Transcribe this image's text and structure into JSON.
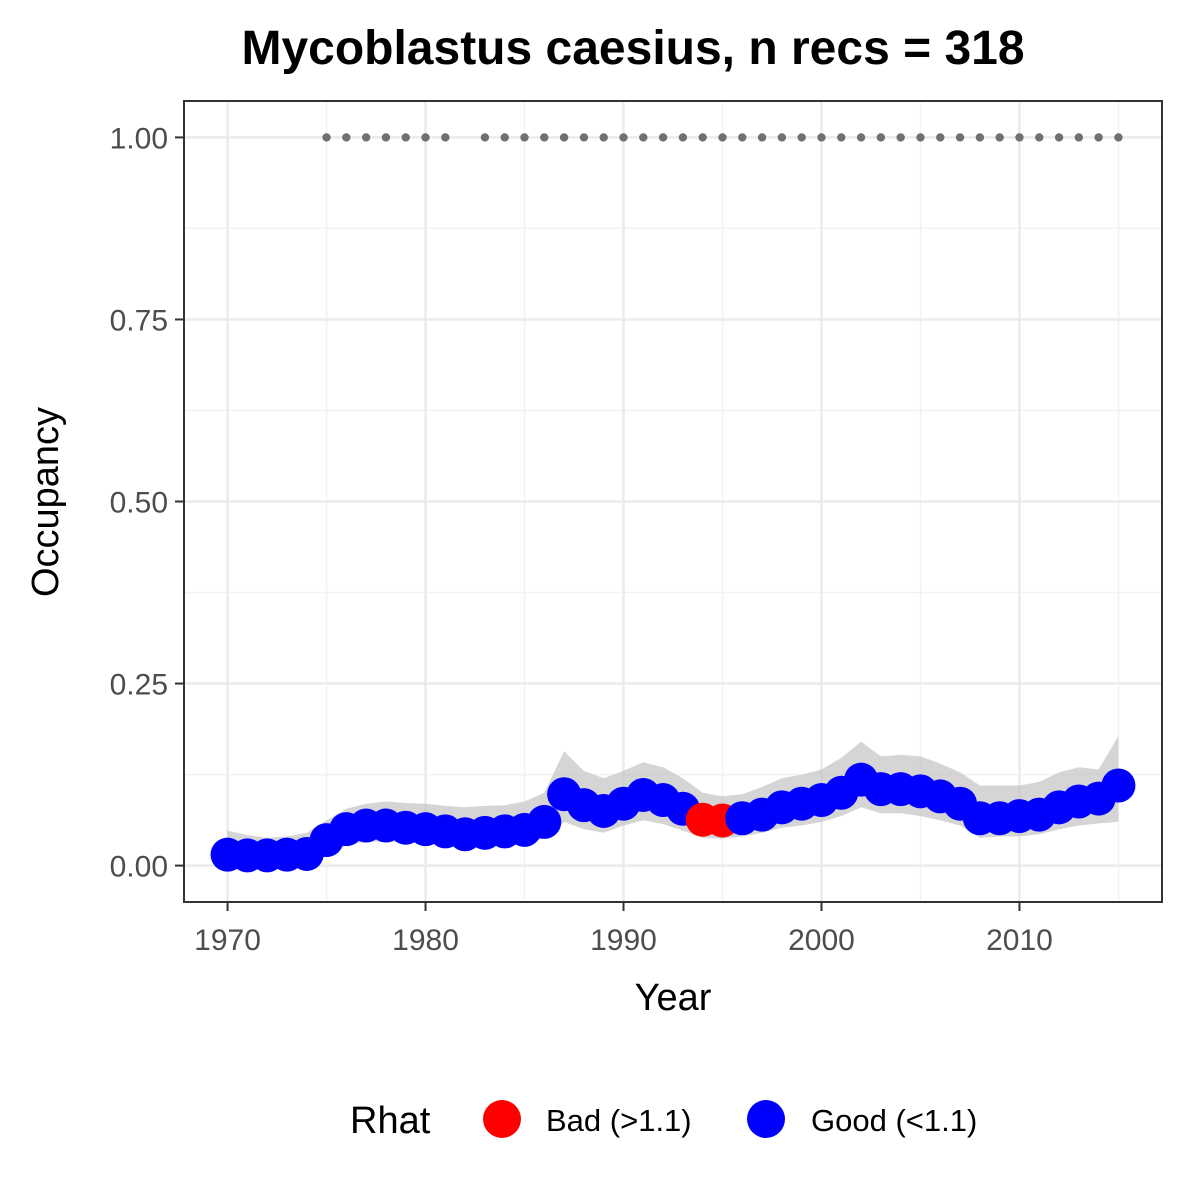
{
  "chart_data": {
    "type": "line",
    "title": "Mycoblastus caesius, n recs = 318",
    "xlabel": "Year",
    "ylabel": "Occupancy",
    "xlim": [
      1967.8,
      2017.2
    ],
    "ylim": [
      -0.05,
      1.05
    ],
    "x_ticks": [
      1970,
      1980,
      1990,
      2000,
      2010
    ],
    "x_tick_labels": [
      "1970",
      "1980",
      "1990",
      "2000",
      "2010"
    ],
    "y_ticks": [
      0,
      0.25,
      0.5,
      0.75,
      1.0
    ],
    "y_tick_labels": [
      "0.00",
      "0.25",
      "0.50",
      "0.75",
      "1.00"
    ],
    "grid": true,
    "legend": {
      "title": "Rhat",
      "position": "bottom",
      "entries": [
        {
          "label": "Bad (>1.1)",
          "color": "#ff0000"
        },
        {
          "label": "Good (<1.1)",
          "color": "#0000ff"
        }
      ]
    },
    "colors": {
      "bad": "#ff0000",
      "good": "#0000ff",
      "ribbon": "#bebebe",
      "record_dots": "#707070"
    },
    "records": {
      "description_free": true,
      "y": 1.0,
      "years": [
        1975,
        1976,
        1977,
        1978,
        1979,
        1980,
        1981,
        1983,
        1984,
        1985,
        1986,
        1987,
        1988,
        1989,
        1990,
        1991,
        1992,
        1993,
        1994,
        1995,
        1996,
        1997,
        1998,
        1999,
        2000,
        2001,
        2002,
        2003,
        2004,
        2005,
        2006,
        2007,
        2008,
        2009,
        2010,
        2011,
        2012,
        2013,
        2014,
        2015
      ]
    },
    "series": [
      {
        "x": [
          1970,
          1971,
          1972,
          1973,
          1974,
          1975,
          1976,
          1977,
          1978,
          1979,
          1980,
          1981,
          1982,
          1983,
          1984,
          1985,
          1986,
          1987,
          1988,
          1989,
          1990,
          1991,
          1992,
          1993,
          1994,
          1995,
          1996,
          1997,
          1998,
          1999,
          2000,
          2001,
          2002,
          2003,
          2004,
          2005,
          2006,
          2007,
          2008,
          2009,
          2010,
          2011,
          2012,
          2013,
          2014,
          2015
        ],
        "y": [
          0.015,
          0.014,
          0.014,
          0.015,
          0.016,
          0.035,
          0.05,
          0.055,
          0.055,
          0.052,
          0.05,
          0.047,
          0.043,
          0.045,
          0.047,
          0.049,
          0.06,
          0.098,
          0.083,
          0.075,
          0.085,
          0.097,
          0.09,
          0.078,
          0.063,
          0.062,
          0.065,
          0.07,
          0.08,
          0.085,
          0.09,
          0.1,
          0.118,
          0.105,
          0.105,
          0.102,
          0.095,
          0.085,
          0.065,
          0.065,
          0.068,
          0.07,
          0.08,
          0.088,
          0.092,
          0.11
        ],
        "rhat": [
          "good",
          "good",
          "good",
          "good",
          "good",
          "good",
          "good",
          "good",
          "good",
          "good",
          "good",
          "good",
          "good",
          "good",
          "good",
          "good",
          "good",
          "good",
          "good",
          "good",
          "good",
          "good",
          "good",
          "good",
          "bad",
          "bad",
          "good",
          "good",
          "good",
          "good",
          "good",
          "good",
          "good",
          "good",
          "good",
          "good",
          "good",
          "good",
          "good",
          "good",
          "good",
          "good",
          "good",
          "good",
          "good",
          "good"
        ],
        "lower": [
          0.002,
          0.002,
          0.002,
          0.002,
          0.003,
          0.015,
          0.028,
          0.033,
          0.033,
          0.032,
          0.03,
          0.028,
          0.025,
          0.026,
          0.028,
          0.029,
          0.038,
          0.06,
          0.05,
          0.045,
          0.055,
          0.062,
          0.057,
          0.048,
          0.038,
          0.037,
          0.04,
          0.045,
          0.052,
          0.055,
          0.06,
          0.068,
          0.08,
          0.072,
          0.072,
          0.068,
          0.062,
          0.055,
          0.038,
          0.04,
          0.04,
          0.043,
          0.05,
          0.055,
          0.058,
          0.06
        ],
        "upper": [
          0.048,
          0.042,
          0.038,
          0.04,
          0.045,
          0.062,
          0.078,
          0.085,
          0.088,
          0.086,
          0.085,
          0.082,
          0.08,
          0.082,
          0.083,
          0.088,
          0.1,
          0.157,
          0.13,
          0.12,
          0.13,
          0.142,
          0.135,
          0.12,
          0.1,
          0.095,
          0.098,
          0.108,
          0.12,
          0.125,
          0.132,
          0.148,
          0.17,
          0.15,
          0.152,
          0.15,
          0.14,
          0.128,
          0.11,
          0.11,
          0.11,
          0.115,
          0.128,
          0.135,
          0.132,
          0.178
        ]
      }
    ]
  }
}
